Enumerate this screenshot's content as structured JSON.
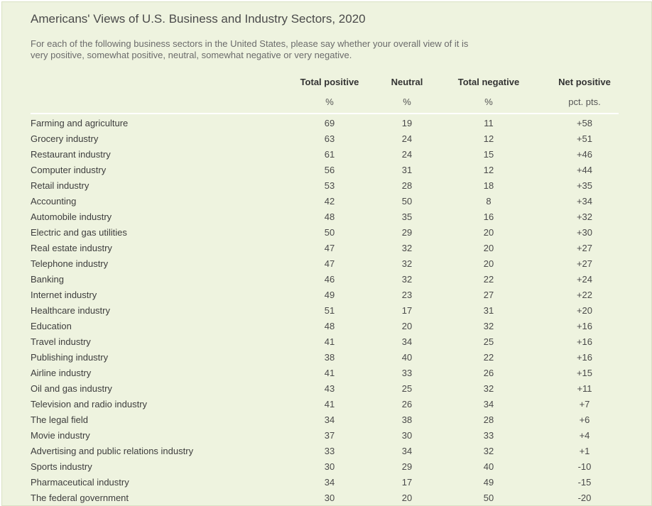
{
  "chart_data": {
    "type": "table",
    "title": "Americans' Views of U.S. Business and Industry Sectors, 2020",
    "subtitle_lines": [
      "For each of the following business sectors in the United States, please say whether your overall view of it is",
      "very positive, somewhat positive, neutral, somewhat negative or very negative."
    ],
    "columns": [
      {
        "header": "Total positive",
        "unit": "%"
      },
      {
        "header": "Neutral",
        "unit": "%"
      },
      {
        "header": "Total negative",
        "unit": "%"
      },
      {
        "header": "Net positive",
        "unit": "pct. pts."
      }
    ],
    "rows": [
      {
        "label": "Farming and agriculture",
        "values": [
          "69",
          "19",
          "11",
          "+58"
        ]
      },
      {
        "label": "Grocery industry",
        "values": [
          "63",
          "24",
          "12",
          "+51"
        ]
      },
      {
        "label": "Restaurant industry",
        "values": [
          "61",
          "24",
          "15",
          "+46"
        ]
      },
      {
        "label": "Computer industry",
        "values": [
          "56",
          "31",
          "12",
          "+44"
        ]
      },
      {
        "label": "Retail industry",
        "values": [
          "53",
          "28",
          "18",
          "+35"
        ]
      },
      {
        "label": "Accounting",
        "values": [
          "42",
          "50",
          "8",
          "+34"
        ]
      },
      {
        "label": "Automobile industry",
        "values": [
          "48",
          "35",
          "16",
          "+32"
        ]
      },
      {
        "label": "Electric and gas utilities",
        "values": [
          "50",
          "29",
          "20",
          "+30"
        ]
      },
      {
        "label": "Real estate industry",
        "values": [
          "47",
          "32",
          "20",
          "+27"
        ]
      },
      {
        "label": "Telephone industry",
        "values": [
          "47",
          "32",
          "20",
          "+27"
        ]
      },
      {
        "label": "Banking",
        "values": [
          "46",
          "32",
          "22",
          "+24"
        ]
      },
      {
        "label": "Internet industry",
        "values": [
          "49",
          "23",
          "27",
          "+22"
        ]
      },
      {
        "label": "Healthcare industry",
        "values": [
          "51",
          "17",
          "31",
          "+20"
        ]
      },
      {
        "label": "Education",
        "values": [
          "48",
          "20",
          "32",
          "+16"
        ]
      },
      {
        "label": "Travel industry",
        "values": [
          "41",
          "34",
          "25",
          "+16"
        ]
      },
      {
        "label": "Publishing industry",
        "values": [
          "38",
          "40",
          "22",
          "+16"
        ]
      },
      {
        "label": "Airline industry",
        "values": [
          "41",
          "33",
          "26",
          "+15"
        ]
      },
      {
        "label": "Oil and gas industry",
        "values": [
          "43",
          "25",
          "32",
          "+11"
        ]
      },
      {
        "label": "Television and radio industry",
        "values": [
          "41",
          "26",
          "34",
          "+7"
        ]
      },
      {
        "label": "The legal field",
        "values": [
          "34",
          "38",
          "28",
          "+6"
        ]
      },
      {
        "label": "Movie industry",
        "values": [
          "37",
          "30",
          "33",
          "+4"
        ]
      },
      {
        "label": "Advertising and public relations industry",
        "values": [
          "33",
          "34",
          "32",
          "+1"
        ]
      },
      {
        "label": "Sports industry",
        "values": [
          "30",
          "29",
          "40",
          "-10"
        ]
      },
      {
        "label": "Pharmaceutical industry",
        "values": [
          "34",
          "17",
          "49",
          "-15"
        ]
      },
      {
        "label": "The federal government",
        "values": [
          "30",
          "20",
          "50",
          "-20"
        ]
      }
    ]
  }
}
